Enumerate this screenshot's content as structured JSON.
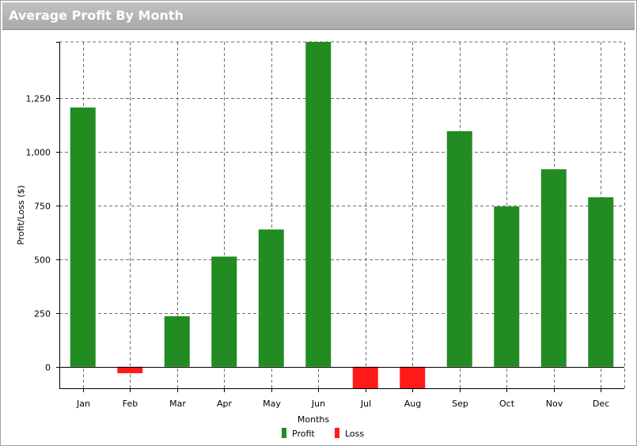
{
  "panel": {
    "title": "Average Profit By Month"
  },
  "chart_data": {
    "type": "bar",
    "xlabel": "Months",
    "ylabel": "Profit/Loss ($)",
    "ylim": [
      -100,
      1510
    ],
    "yticks": [
      0,
      250,
      500,
      750,
      1000,
      1250
    ],
    "ytick_labels": [
      "0",
      "250",
      "500",
      "750",
      "1,000",
      "1,250"
    ],
    "grid": true,
    "categories": [
      "Jan",
      "Feb",
      "Mar",
      "Apr",
      "May",
      "Jun",
      "Jul",
      "Aug",
      "Sep",
      "Oct",
      "Nov",
      "Dec"
    ],
    "values": [
      1205,
      -30,
      235,
      512,
      638,
      1510,
      -100,
      -100,
      1095,
      745,
      918,
      788
    ],
    "series": [
      {
        "name": "Profit",
        "color": "#228b22"
      },
      {
        "name": "Loss",
        "color": "#ff1a1a"
      }
    ],
    "legend_position": "bottom"
  }
}
